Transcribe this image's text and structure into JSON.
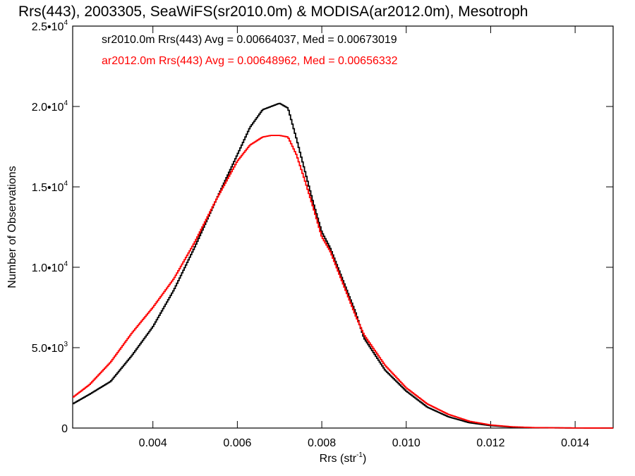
{
  "chart_data": {
    "type": "line",
    "title": "Rrs(443), 2003305, SeaWiFS(sr2010.0m) & MODISA(ar2012.0m), Mesotroph",
    "xlabel_base": "Rrs (str",
    "xlabel_sup": "-1",
    "xlabel_close": ")",
    "ylabel": "Number of Observations",
    "xlim": [
      0.0021,
      0.0149
    ],
    "ylim": [
      0,
      25000
    ],
    "x_ticks": [
      {
        "value": 0.004,
        "label": "0.004"
      },
      {
        "value": 0.006,
        "label": "0.006"
      },
      {
        "value": 0.008,
        "label": "0.008"
      },
      {
        "value": 0.01,
        "label": "0.010"
      },
      {
        "value": 0.012,
        "label": "0.012"
      },
      {
        "value": 0.014,
        "label": "0.014"
      }
    ],
    "y_ticks": [
      {
        "value": 0,
        "base": "0",
        "exp": ""
      },
      {
        "value": 5000,
        "base": "5.0•10",
        "exp": "3"
      },
      {
        "value": 10000,
        "base": "1.0•10",
        "exp": "4"
      },
      {
        "value": 15000,
        "base": "1.5•10",
        "exp": "4"
      },
      {
        "value": 20000,
        "base": "2.0•10",
        "exp": "4"
      },
      {
        "value": 25000,
        "base": "2.5•10",
        "exp": "4"
      }
    ],
    "grid": false,
    "legend_placement": "top-left",
    "series": [
      {
        "name": "sr2010.0m Rrs(443) Avg = 0.00664037, Med = 0.00673019",
        "color": "#000000",
        "x": [
          0.0021,
          0.0025,
          0.003,
          0.0035,
          0.004,
          0.0045,
          0.005,
          0.0055,
          0.006,
          0.0063,
          0.0066,
          0.0068,
          0.007,
          0.0072,
          0.0074,
          0.0076,
          0.0078,
          0.008,
          0.0082,
          0.0085,
          0.0088,
          0.009,
          0.0095,
          0.01,
          0.0105,
          0.011,
          0.0115,
          0.012,
          0.0125,
          0.013,
          0.014,
          0.0149
        ],
        "y": [
          1500,
          2100,
          2900,
          4500,
          6300,
          8600,
          11300,
          14200,
          17000,
          18700,
          19800,
          20000,
          20200,
          19900,
          18000,
          16000,
          14000,
          12200,
          11200,
          9200,
          7200,
          5600,
          3600,
          2300,
          1300,
          700,
          330,
          150,
          60,
          25,
          5,
          0
        ]
      },
      {
        "name": "ar2012.0m Rrs(443) Avg = 0.00648962, Med = 0.00656332",
        "color": "#ff0000",
        "x": [
          0.0021,
          0.0025,
          0.003,
          0.0035,
          0.004,
          0.0045,
          0.005,
          0.0055,
          0.006,
          0.0063,
          0.0066,
          0.0068,
          0.007,
          0.0072,
          0.0074,
          0.0076,
          0.0078,
          0.008,
          0.0082,
          0.0085,
          0.0088,
          0.009,
          0.0095,
          0.01,
          0.0105,
          0.011,
          0.0115,
          0.012,
          0.0125,
          0.013,
          0.014,
          0.0149
        ],
        "y": [
          1900,
          2700,
          4100,
          5900,
          7500,
          9300,
          11600,
          14200,
          16600,
          17600,
          18100,
          18200,
          18200,
          18100,
          17000,
          15400,
          13700,
          11900,
          11000,
          9000,
          7000,
          5800,
          3900,
          2500,
          1500,
          850,
          420,
          190,
          80,
          30,
          5,
          0
        ]
      }
    ]
  }
}
